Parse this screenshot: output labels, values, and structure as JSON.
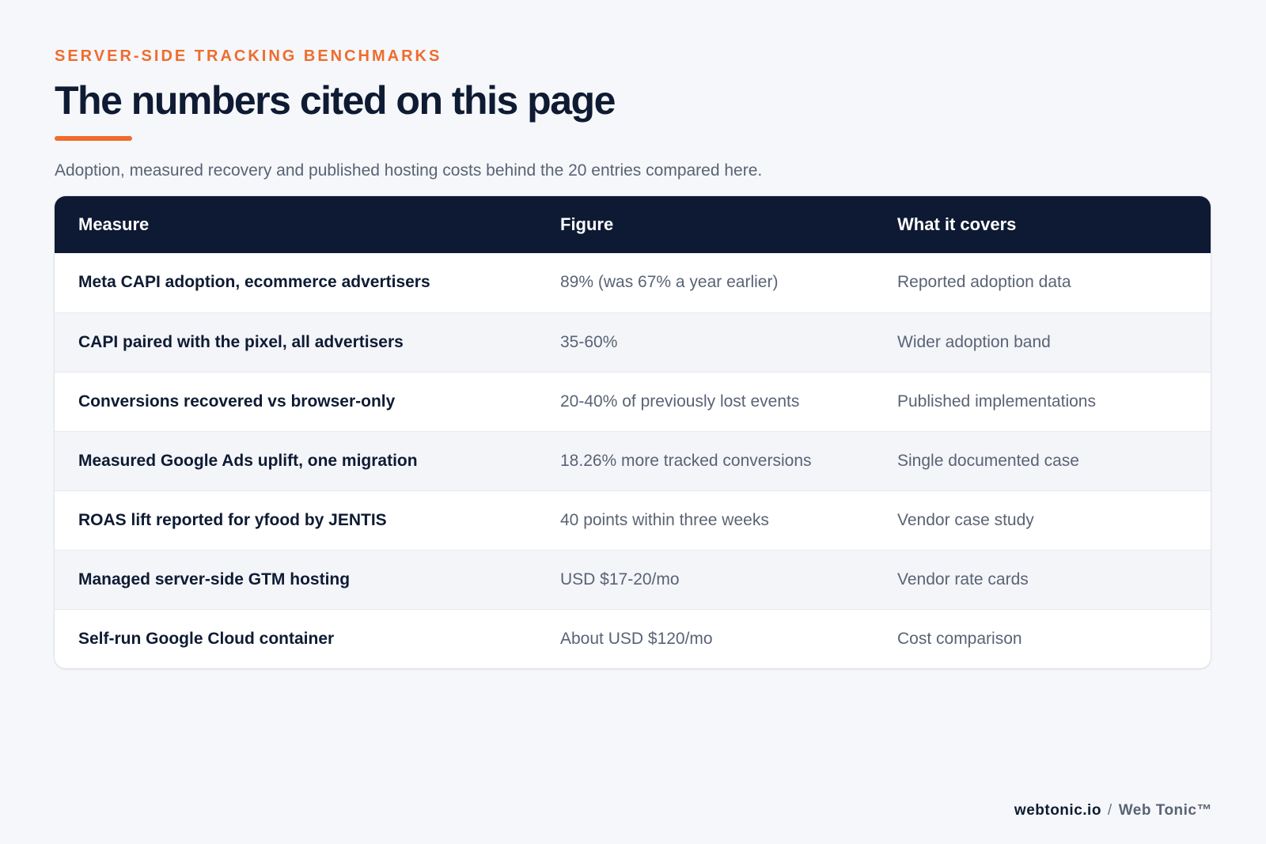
{
  "header": {
    "eyebrow": "SERVER-SIDE TRACKING BENCHMARKS",
    "title": "The numbers cited on this page",
    "subtitle": "Adoption, measured recovery and published hosting costs behind the 20 entries compared here."
  },
  "table": {
    "columns": [
      "Measure",
      "Figure",
      "What it covers"
    ],
    "rows": [
      {
        "measure": "Meta CAPI adoption, ecommerce advertisers",
        "figure": "89% (was 67% a year earlier)",
        "covers": "Reported adoption data"
      },
      {
        "measure": "CAPI paired with the pixel, all advertisers",
        "figure": "35-60%",
        "covers": "Wider adoption band"
      },
      {
        "measure": "Conversions recovered vs browser-only",
        "figure": "20-40% of previously lost events",
        "covers": "Published implementations"
      },
      {
        "measure": "Measured Google Ads uplift, one migration",
        "figure": "18.26% more tracked conversions",
        "covers": "Single documented case"
      },
      {
        "measure": "ROAS lift reported for yfood by JENTIS",
        "figure": "40 points within three weeks",
        "covers": "Vendor case study"
      },
      {
        "measure": "Managed server-side GTM hosting",
        "figure": "USD $17-20/mo",
        "covers": "Vendor rate cards"
      },
      {
        "measure": "Self-run Google Cloud container",
        "figure": "About USD $120/mo",
        "covers": "Cost comparison"
      }
    ]
  },
  "footer": {
    "site": "webtonic.io",
    "separator": "/",
    "brand": "Web Tonic™"
  },
  "colors": {
    "accent": "#ef6c2d",
    "header_bg": "#0e1a33",
    "page_bg": "#f5f7fa"
  }
}
